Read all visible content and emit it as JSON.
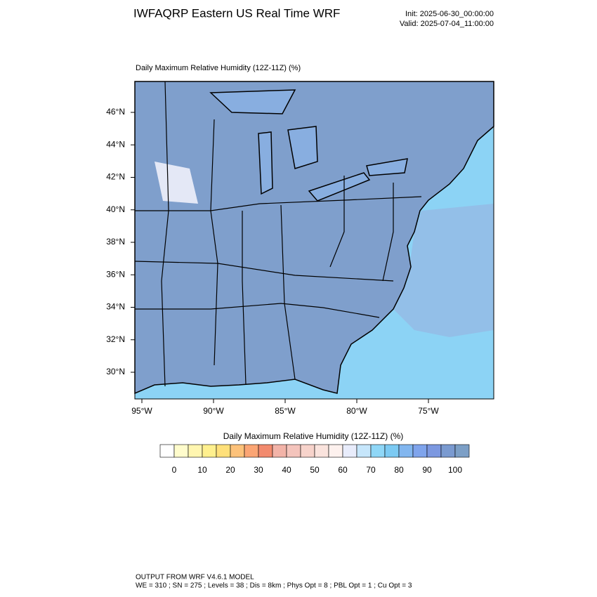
{
  "header": {
    "title": "IWFAQRP Eastern US Real Time WRF",
    "init": "Init: 2025-06-30_00:00:00",
    "valid": "Valid: 2025-07-04_11:00:00"
  },
  "map": {
    "title": "Daily Maximum Relative Humidity (12Z-11Z)   (%)",
    "lon_labels": [
      "95°W",
      "90°W",
      "85°W",
      "80°W",
      "75°W"
    ],
    "lat_labels": [
      "46°N",
      "44°N",
      "42°N",
      "40°N",
      "38°N",
      "36°N",
      "34°N",
      "32°N",
      "30°N"
    ]
  },
  "colorbar": {
    "title": "Daily Maximum Relative Humidity (12Z-11Z)  (%)",
    "labels": [
      0,
      10,
      20,
      30,
      40,
      50,
      60,
      70,
      80,
      90,
      100
    ],
    "colors": [
      "#ffffff",
      "#fffccc",
      "#fff6b0",
      "#fff08e",
      "#ffe07a",
      "#fdc27a",
      "#fba574",
      "#f28a6e",
      "#f2b3a8",
      "#f4c4bc",
      "#f7d3cb",
      "#fae3dd",
      "#fdf1ee",
      "#e8ecfb",
      "#c6e6fb",
      "#8fd7f7",
      "#7ccaf3",
      "#82b6ef",
      "#7fa4ec",
      "#7c98e0",
      "#7a9ad0",
      "#7c9fc6"
    ]
  },
  "footer": {
    "line1": "OUTPUT FROM WRF V4.6.1 MODEL",
    "line2": "WE = 310 ; SN = 275 ; Levels = 38 ; Dis = 8km ; Phys Opt = 8 ; PBL Opt = 1 ; Cu Opt = 3"
  }
}
